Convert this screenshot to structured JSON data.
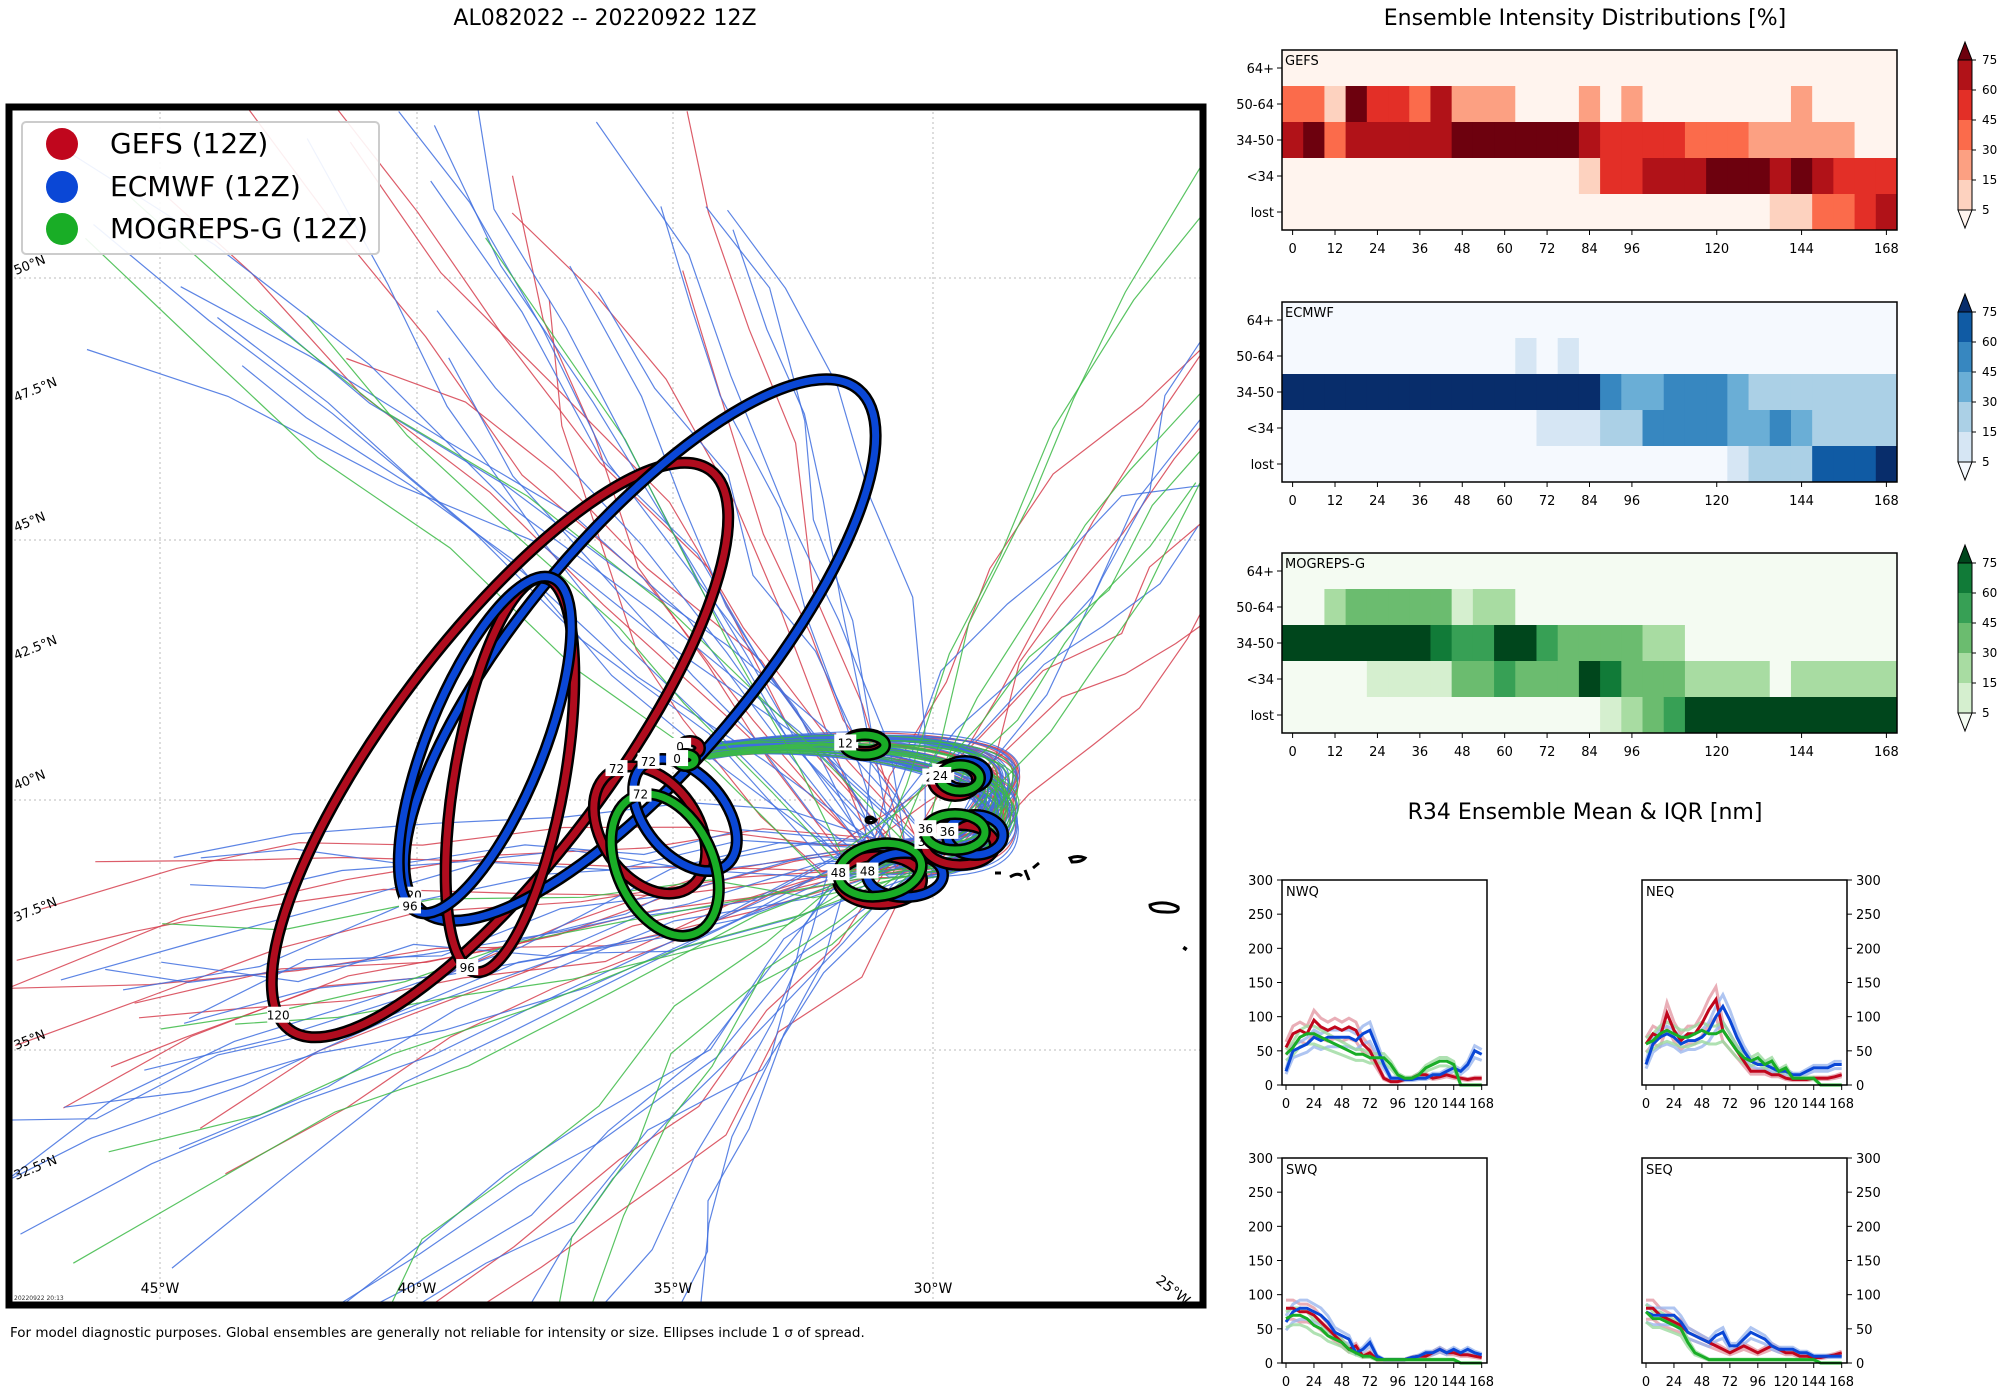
{
  "titles": {
    "main": "AL082022 -- 20220922 12Z",
    "intensity": "Ensemble Intensity Distributions [%]",
    "r34": "R34 Ensemble Mean & IQR [nm]"
  },
  "footer": "For model diagnostic purposes. Global ensembles are generally not reliable for intensity or size. Ellipses include 1 σ of spread.",
  "timestamp": "20220922 20:13",
  "legend": [
    {
      "label": "GEFS (12Z)",
      "color": "#c0061d"
    },
    {
      "label": "ECMWF (12Z)",
      "color": "#0a47d6"
    },
    {
      "label": "MOGREPS-G (12Z)",
      "color": "#19ad26"
    }
  ],
  "map": {
    "lat_labels": [
      "50°N",
      "47.5°N",
      "45°N",
      "42.5°N",
      "40°N",
      "37.5°N",
      "35°N",
      "32.5°N"
    ],
    "lon_labels": [
      "45°W",
      "40°W",
      "35°W",
      "30°W",
      "25°W"
    ],
    "forecast_hour_labels": [
      "0",
      "12",
      "24",
      "36",
      "48",
      "72",
      "96",
      "120"
    ]
  },
  "chart_data": [
    {
      "type": "heatmap",
      "title": "GEFS",
      "colormap": "Reds",
      "y_categories": [
        "64+",
        "50-64",
        "34-50",
        "<34",
        "lost"
      ],
      "x_ticks": [
        0,
        12,
        24,
        36,
        48,
        60,
        72,
        84,
        96,
        120,
        144,
        168
      ],
      "x_hours": [
        0,
        6,
        12,
        18,
        24,
        30,
        36,
        42,
        48,
        54,
        60,
        66,
        72,
        78,
        84,
        90,
        96,
        102,
        108,
        114,
        120,
        126,
        132,
        138,
        144,
        150,
        156,
        162,
        168
      ],
      "colorbar_ticks": [
        5,
        15,
        30,
        45,
        60,
        75
      ],
      "values": {
        "64+": [
          0,
          0,
          0,
          0,
          0,
          0,
          0,
          0,
          0,
          0,
          0,
          0,
          0,
          0,
          0,
          0,
          0,
          0,
          0,
          0,
          0,
          0,
          0,
          0,
          0,
          0,
          0,
          0,
          0
        ],
        "50-64": [
          36,
          36,
          10,
          85,
          50,
          50,
          40,
          60,
          18,
          18,
          18,
          0,
          0,
          0,
          15,
          0,
          15,
          0,
          0,
          0,
          0,
          0,
          0,
          0,
          15,
          0,
          0,
          0,
          0
        ],
        "34-50": [
          65,
          85,
          40,
          65,
          65,
          65,
          65,
          65,
          85,
          85,
          85,
          85,
          85,
          85,
          70,
          45,
          45,
          45,
          45,
          36,
          36,
          36,
          18,
          18,
          18,
          18,
          18,
          0,
          0
        ],
        "<34": [
          0,
          0,
          0,
          0,
          0,
          0,
          0,
          0,
          0,
          0,
          0,
          0,
          0,
          0,
          12,
          45,
          45,
          65,
          65,
          65,
          90,
          90,
          90,
          65,
          90,
          65,
          50,
          50,
          45
        ],
        "lost": [
          0,
          0,
          0,
          0,
          0,
          0,
          0,
          0,
          0,
          0,
          0,
          0,
          0,
          0,
          0,
          0,
          0,
          0,
          0,
          0,
          0,
          0,
          0,
          12,
          12,
          30,
          40,
          45,
          70
        ]
      }
    },
    {
      "type": "heatmap",
      "title": "ECMWF",
      "colormap": "Blues",
      "y_categories": [
        "64+",
        "50-64",
        "34-50",
        "<34",
        "lost"
      ],
      "x_ticks": [
        0,
        12,
        24,
        36,
        48,
        60,
        72,
        84,
        96,
        120,
        144,
        168
      ],
      "x_hours": [
        0,
        6,
        12,
        18,
        24,
        30,
        36,
        42,
        48,
        54,
        60,
        66,
        72,
        78,
        84,
        90,
        96,
        102,
        108,
        114,
        120,
        126,
        132,
        138,
        144,
        150,
        156,
        162,
        168
      ],
      "colorbar_ticks": [
        5,
        15,
        30,
        45,
        60,
        75
      ],
      "values": {
        "64+": [
          0,
          0,
          0,
          0,
          0,
          0,
          0,
          0,
          0,
          0,
          0,
          0,
          0,
          0,
          0,
          0,
          0,
          0,
          0,
          0,
          0,
          0,
          0,
          0,
          0,
          0,
          0,
          0,
          0
        ],
        "50-64": [
          0,
          0,
          0,
          0,
          0,
          0,
          0,
          0,
          0,
          0,
          0,
          12,
          0,
          12,
          0,
          0,
          0,
          0,
          0,
          0,
          0,
          0,
          0,
          0,
          0,
          0,
          0,
          0,
          0
        ],
        "34-50": [
          95,
          95,
          95,
          95,
          95,
          95,
          95,
          95,
          95,
          95,
          95,
          95,
          95,
          95,
          95,
          50,
          35,
          35,
          50,
          50,
          50,
          35,
          25,
          25,
          25,
          15,
          15,
          15,
          15
        ],
        "<34": [
          0,
          0,
          0,
          0,
          0,
          0,
          0,
          0,
          0,
          0,
          0,
          0,
          12,
          12,
          12,
          15,
          25,
          50,
          50,
          50,
          50,
          35,
          35,
          50,
          35,
          25,
          25,
          25,
          15
        ],
        "lost": [
          0,
          0,
          0,
          0,
          0,
          0,
          0,
          0,
          0,
          0,
          0,
          0,
          0,
          0,
          0,
          0,
          0,
          0,
          0,
          0,
          0,
          12,
          15,
          15,
          25,
          65,
          65,
          65,
          90
        ]
      }
    },
    {
      "type": "heatmap",
      "title": "MOGREPS-G",
      "colormap": "Greens",
      "y_categories": [
        "64+",
        "50-64",
        "34-50",
        "<34",
        "lost"
      ],
      "x_ticks": [
        0,
        12,
        24,
        36,
        48,
        60,
        72,
        84,
        96,
        120,
        144,
        168
      ],
      "x_hours": [
        0,
        6,
        12,
        18,
        24,
        30,
        36,
        42,
        48,
        54,
        60,
        66,
        72,
        78,
        84,
        90,
        96,
        102,
        108,
        114,
        120,
        126,
        132,
        138,
        144,
        150,
        156,
        162,
        168
      ],
      "colorbar_ticks": [
        5,
        15,
        30,
        45,
        60,
        75
      ],
      "values": {
        "64+": [
          0,
          0,
          0,
          0,
          0,
          0,
          0,
          0,
          0,
          0,
          0,
          0,
          0,
          0,
          0,
          0,
          0,
          0,
          0,
          0,
          0,
          0,
          0,
          0,
          0,
          0,
          0,
          0,
          0
        ],
        "50-64": [
          0,
          0,
          15,
          30,
          30,
          30,
          30,
          40,
          10,
          15,
          15,
          0,
          0,
          0,
          0,
          0,
          0,
          0,
          0,
          0,
          0,
          0,
          0,
          0,
          0,
          0,
          0,
          0,
          0
        ],
        "34-50": [
          95,
          95,
          80,
          80,
          95,
          80,
          95,
          65,
          55,
          55,
          80,
          80,
          55,
          35,
          35,
          35,
          35,
          15,
          15,
          0,
          0,
          0,
          0,
          0,
          0,
          0,
          0,
          0,
          0
        ],
        "<34": [
          0,
          0,
          0,
          0,
          10,
          10,
          10,
          10,
          40,
          40,
          55,
          40,
          40,
          40,
          95,
          65,
          40,
          40,
          40,
          15,
          15,
          15,
          15,
          0,
          15,
          15,
          15,
          15,
          15
        ],
        "lost": [
          0,
          0,
          0,
          0,
          0,
          0,
          0,
          0,
          0,
          0,
          0,
          0,
          0,
          0,
          0,
          5,
          15,
          30,
          45,
          95,
          95,
          95,
          95,
          95,
          95,
          95,
          95,
          95,
          95
        ]
      }
    },
    {
      "type": "line",
      "title": "NWQ",
      "x": [
        0,
        6,
        12,
        18,
        24,
        30,
        36,
        42,
        48,
        54,
        60,
        66,
        72,
        78,
        84,
        90,
        96,
        102,
        108,
        114,
        120,
        126,
        132,
        138,
        144,
        150,
        156,
        162,
        168
      ],
      "ylim": [
        0,
        300
      ],
      "x_ticks": [
        0,
        24,
        48,
        72,
        96,
        120,
        144,
        168
      ],
      "y_ticks": [
        0,
        50,
        100,
        150,
        200,
        250,
        300
      ],
      "series": [
        {
          "name": "GEFS",
          "values": [
            55,
            75,
            80,
            75,
            95,
            85,
            80,
            85,
            80,
            85,
            80,
            60,
            50,
            30,
            10,
            5,
            5,
            8,
            10,
            15,
            15,
            10,
            12,
            15,
            12,
            10,
            8,
            10,
            10
          ]
        },
        {
          "name": "ECMWF",
          "values": [
            20,
            50,
            55,
            60,
            70,
            65,
            70,
            70,
            70,
            70,
            65,
            75,
            80,
            55,
            30,
            10,
            10,
            8,
            8,
            10,
            10,
            15,
            15,
            20,
            25,
            20,
            30,
            50,
            45
          ]
        },
        {
          "name": "MOGREPS-G",
          "values": [
            45,
            55,
            70,
            75,
            75,
            70,
            65,
            60,
            55,
            50,
            45,
            45,
            40,
            40,
            40,
            30,
            15,
            10,
            10,
            15,
            25,
            30,
            35,
            35,
            30,
            0,
            0,
            0,
            0
          ]
        }
      ]
    },
    {
      "type": "line",
      "title": "NEQ",
      "x": [
        0,
        6,
        12,
        18,
        24,
        30,
        36,
        42,
        48,
        54,
        60,
        66,
        72,
        78,
        84,
        90,
        96,
        102,
        108,
        114,
        120,
        126,
        132,
        138,
        144,
        150,
        156,
        162,
        168
      ],
      "ylim": [
        0,
        300
      ],
      "x_ticks": [
        0,
        24,
        48,
        72,
        96,
        120,
        144,
        168
      ],
      "y_ticks": [
        0,
        50,
        100,
        150,
        200,
        250,
        300
      ],
      "series": [
        {
          "name": "GEFS",
          "values": [
            60,
            75,
            70,
            105,
            80,
            65,
            75,
            75,
            90,
            110,
            125,
            80,
            65,
            50,
            35,
            20,
            20,
            20,
            15,
            15,
            10,
            8,
            8,
            8,
            10,
            10,
            10,
            12,
            15
          ]
        },
        {
          "name": "ECMWF",
          "values": [
            30,
            60,
            70,
            75,
            70,
            60,
            65,
            65,
            70,
            80,
            100,
            115,
            95,
            70,
            50,
            35,
            30,
            30,
            25,
            20,
            20,
            15,
            15,
            20,
            25,
            25,
            25,
            30,
            30
          ]
        },
        {
          "name": "MOGREPS-G",
          "values": [
            60,
            65,
            75,
            80,
            75,
            70,
            70,
            75,
            80,
            75,
            75,
            80,
            65,
            50,
            40,
            35,
            40,
            30,
            35,
            20,
            25,
            10,
            10,
            10,
            10,
            0,
            0,
            0,
            0
          ]
        }
      ]
    },
    {
      "type": "line",
      "title": "SWQ",
      "x": [
        0,
        6,
        12,
        18,
        24,
        30,
        36,
        42,
        48,
        54,
        60,
        66,
        72,
        78,
        84,
        90,
        96,
        102,
        108,
        114,
        120,
        126,
        132,
        138,
        144,
        150,
        156,
        162,
        168
      ],
      "ylim": [
        0,
        300
      ],
      "x_ticks": [
        0,
        24,
        48,
        72,
        96,
        120,
        144,
        168
      ],
      "y_ticks": [
        0,
        50,
        100,
        150,
        200,
        250,
        300
      ],
      "series": [
        {
          "name": "GEFS",
          "values": [
            80,
            80,
            75,
            75,
            70,
            60,
            50,
            40,
            30,
            20,
            25,
            10,
            15,
            5,
            5,
            5,
            5,
            5,
            8,
            10,
            10,
            15,
            20,
            15,
            15,
            12,
            12,
            10,
            8
          ]
        },
        {
          "name": "ECMWF",
          "values": [
            60,
            75,
            80,
            80,
            75,
            70,
            60,
            45,
            40,
            35,
            15,
            20,
            30,
            10,
            5,
            5,
            5,
            5,
            8,
            10,
            15,
            15,
            20,
            15,
            20,
            15,
            20,
            15,
            12
          ]
        },
        {
          "name": "MOGREPS-G",
          "values": [
            65,
            70,
            70,
            65,
            55,
            50,
            40,
            35,
            30,
            20,
            15,
            10,
            10,
            5,
            5,
            5,
            5,
            5,
            5,
            5,
            5,
            5,
            5,
            5,
            5,
            0,
            0,
            0,
            0
          ]
        }
      ]
    },
    {
      "type": "line",
      "title": "SEQ",
      "x": [
        0,
        6,
        12,
        18,
        24,
        30,
        36,
        42,
        48,
        54,
        60,
        66,
        72,
        78,
        84,
        90,
        96,
        102,
        108,
        114,
        120,
        126,
        132,
        138,
        144,
        150,
        156,
        162,
        168
      ],
      "ylim": [
        0,
        300
      ],
      "x_ticks": [
        0,
        24,
        48,
        72,
        96,
        120,
        144,
        168
      ],
      "y_ticks": [
        0,
        50,
        100,
        150,
        200,
        250,
        300
      ],
      "series": [
        {
          "name": "GEFS",
          "values": [
            80,
            80,
            70,
            65,
            60,
            55,
            45,
            40,
            35,
            30,
            25,
            20,
            15,
            20,
            25,
            20,
            15,
            20,
            25,
            20,
            15,
            15,
            10,
            10,
            8,
            8,
            10,
            12,
            15
          ]
        },
        {
          "name": "ECMWF",
          "values": [
            75,
            70,
            70,
            70,
            70,
            60,
            45,
            40,
            35,
            30,
            40,
            45,
            25,
            25,
            35,
            45,
            40,
            35,
            25,
            20,
            20,
            20,
            15,
            15,
            10,
            10,
            10,
            10,
            10
          ]
        },
        {
          "name": "MOGREPS-G",
          "values": [
            75,
            65,
            65,
            60,
            55,
            50,
            30,
            15,
            10,
            5,
            5,
            5,
            5,
            5,
            5,
            5,
            5,
            5,
            5,
            5,
            5,
            5,
            5,
            5,
            5,
            0,
            0,
            0,
            0
          ]
        }
      ]
    }
  ]
}
